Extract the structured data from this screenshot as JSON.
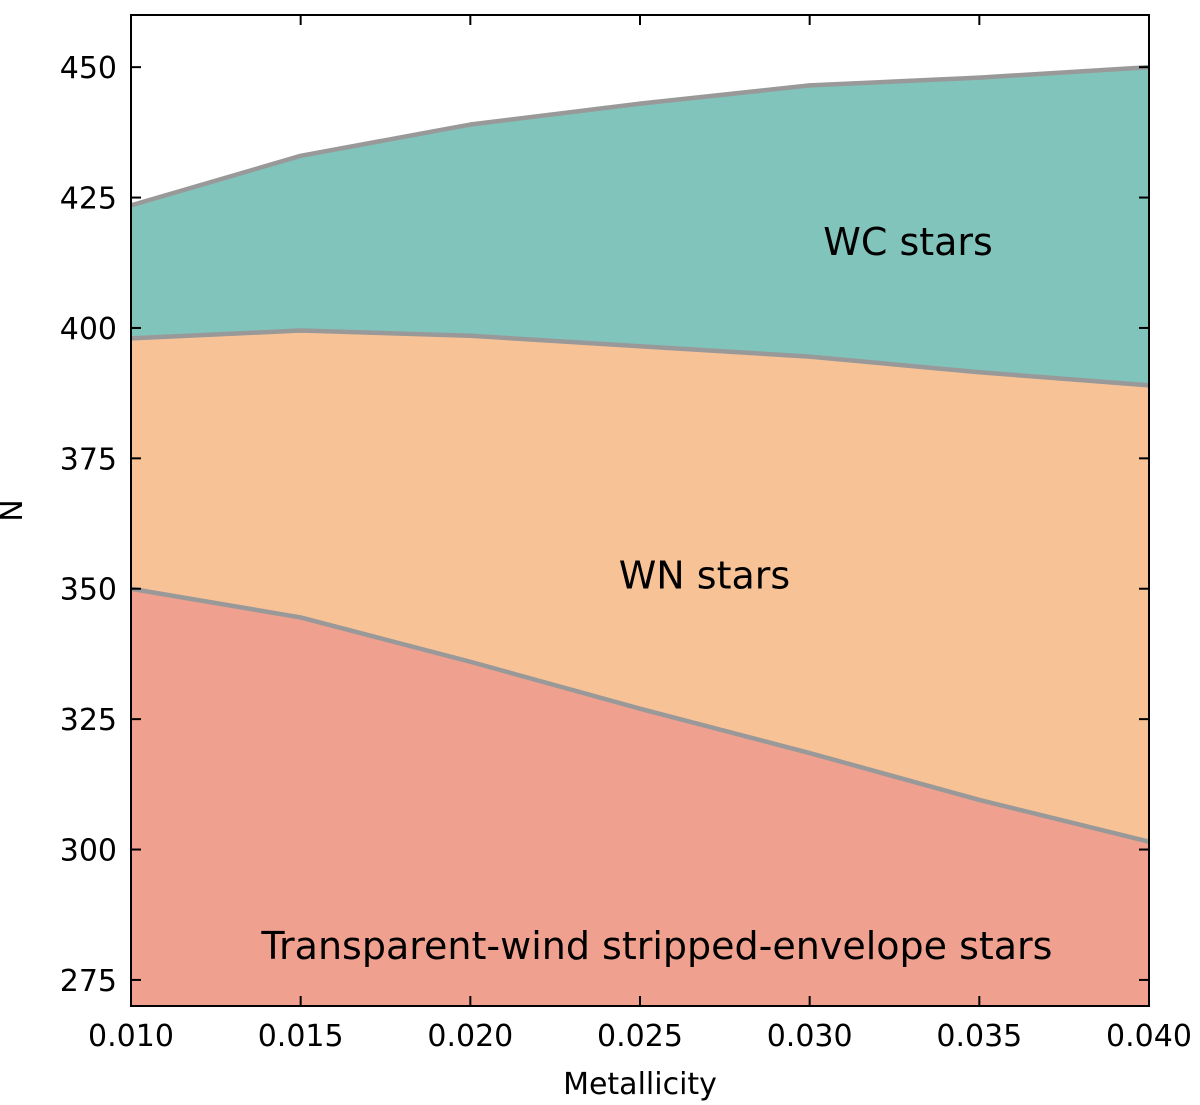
{
  "chart_data": {
    "type": "area",
    "stacked": true,
    "xlabel": "Metallicity",
    "ylabel": "N",
    "xlim": [
      0.01,
      0.04
    ],
    "ylim": [
      270,
      460
    ],
    "xticks": [
      "0.010",
      "0.015",
      "0.020",
      "0.025",
      "0.030",
      "0.035",
      "0.040"
    ],
    "yticks": [
      "275",
      "300",
      "325",
      "350",
      "375",
      "400",
      "425",
      "450"
    ],
    "grid": false,
    "legend": "none",
    "x": [
      0.01,
      0.015,
      0.02,
      0.025,
      0.03,
      0.035,
      0.04
    ],
    "boundaries": {
      "transparent_wind_top": [
        350.0,
        344.5,
        336.0,
        327.0,
        318.5,
        309.5,
        301.5
      ],
      "wn_top": [
        398.0,
        399.5,
        398.5,
        396.5,
        394.5,
        391.5,
        389.0
      ],
      "wc_top": [
        423.5,
        433.0,
        439.0,
        443.0,
        446.5,
        448.0,
        450.0
      ]
    },
    "series": [
      {
        "name": "Transparent-wind stripped-envelope stars",
        "color": "#efa08e"
      },
      {
        "name": "WN stars",
        "color": "#f8c297"
      },
      {
        "name": "WC stars",
        "color": "#80c4bc"
      }
    ],
    "boundary_color": "#999999",
    "annotations": [
      {
        "text": "WC stars",
        "x": 0.0329,
        "y": 414
      },
      {
        "text": "WN stars",
        "x": 0.0269,
        "y": 350
      },
      {
        "text": "Transparent-wind stripped-envelope stars",
        "x": 0.0255,
        "y": 279
      }
    ]
  }
}
